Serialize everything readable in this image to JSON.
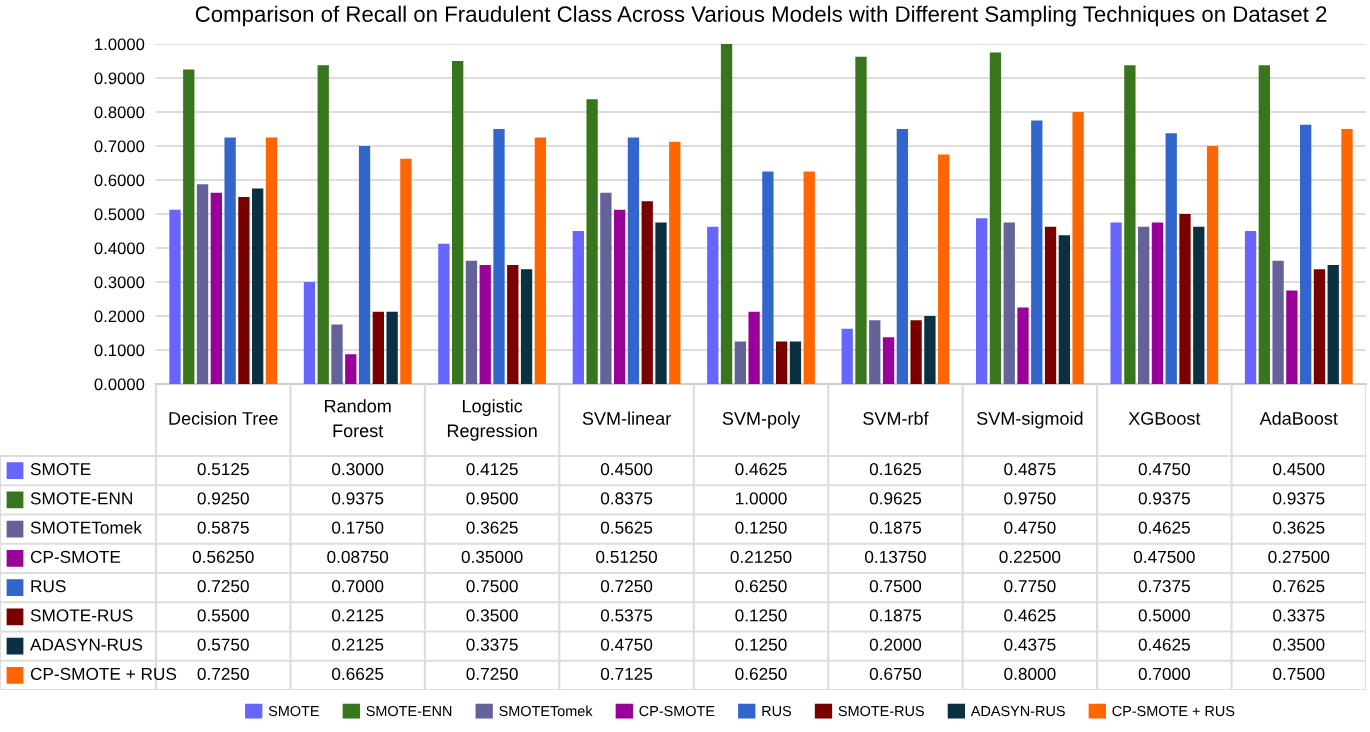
{
  "chart_data": {
    "type": "bar",
    "title": "Comparison of Recall on Fraudulent Class Across Various Models with Different Sampling Techniques on Dataset 2",
    "categories": [
      "Decision Tree",
      "Random Forest",
      "Logistic Regression",
      "SVM-linear",
      "SVM-poly",
      "SVM-rbf",
      "SVM-sigmoid",
      "XGBoost",
      "AdaBoost"
    ],
    "series": [
      {
        "name": "SMOTE",
        "color": "#6666ff",
        "values": [
          0.5125,
          0.3,
          0.4125,
          0.45,
          0.4625,
          0.1625,
          0.4875,
          0.475,
          0.45
        ],
        "value_labels": [
          "0.5125",
          "0.3000",
          "0.4125",
          "0.4500",
          "0.4625",
          "0.1625",
          "0.4875",
          "0.4750",
          "0.4500"
        ]
      },
      {
        "name": "SMOTE-ENN",
        "color": "#38761d",
        "values": [
          0.925,
          0.9375,
          0.95,
          0.8375,
          1.0,
          0.9625,
          0.975,
          0.9375,
          0.9375
        ],
        "value_labels": [
          "0.9250",
          "0.9375",
          "0.9500",
          "0.8375",
          "1.0000",
          "0.9625",
          "0.9750",
          "0.9375",
          "0.9375"
        ]
      },
      {
        "name": "SMOTETomek",
        "color": "#636399",
        "values": [
          0.5875,
          0.175,
          0.3625,
          0.5625,
          0.125,
          0.1875,
          0.475,
          0.4625,
          0.3625
        ],
        "value_labels": [
          "0.5875",
          "0.1750",
          "0.3625",
          "0.5625",
          "0.1250",
          "0.1875",
          "0.4750",
          "0.4625",
          "0.3625"
        ]
      },
      {
        "name": "CP-SMOTE",
        "color": "#990099",
        "values": [
          0.5625,
          0.0875,
          0.35,
          0.5125,
          0.2125,
          0.1375,
          0.225,
          0.475,
          0.275
        ],
        "value_labels": [
          "0.56250",
          "0.08750",
          "0.35000",
          "0.51250",
          "0.21250",
          "0.13750",
          "0.22500",
          "0.47500",
          "0.27500"
        ]
      },
      {
        "name": "RUS",
        "color": "#3366cc",
        "values": [
          0.725,
          0.7,
          0.75,
          0.725,
          0.625,
          0.75,
          0.775,
          0.7375,
          0.7625
        ],
        "value_labels": [
          "0.7250",
          "0.7000",
          "0.7500",
          "0.7250",
          "0.6250",
          "0.7500",
          "0.7750",
          "0.7375",
          "0.7625"
        ]
      },
      {
        "name": "SMOTE-RUS",
        "color": "#7a0000",
        "values": [
          0.55,
          0.2125,
          0.35,
          0.5375,
          0.125,
          0.1875,
          0.4625,
          0.5,
          0.3375
        ],
        "value_labels": [
          "0.5500",
          "0.2125",
          "0.3500",
          "0.5375",
          "0.1250",
          "0.1875",
          "0.4625",
          "0.5000",
          "0.3375"
        ]
      },
      {
        "name": "ADASYN-RUS",
        "color": "#0b3042",
        "values": [
          0.575,
          0.2125,
          0.3375,
          0.475,
          0.125,
          0.2,
          0.4375,
          0.4625,
          0.35
        ],
        "value_labels": [
          "0.5750",
          "0.2125",
          "0.3375",
          "0.4750",
          "0.1250",
          "0.2000",
          "0.4375",
          "0.4625",
          "0.3500"
        ]
      },
      {
        "name": "CP-SMOTE + RUS",
        "color": "#ff6600",
        "values": [
          0.725,
          0.6625,
          0.725,
          0.7125,
          0.625,
          0.675,
          0.8,
          0.7,
          0.75
        ],
        "value_labels": [
          "0.7250",
          "0.6625",
          "0.7250",
          "0.7125",
          "0.6250",
          "0.6750",
          "0.8000",
          "0.7000",
          "0.7500"
        ]
      }
    ],
    "ylim": [
      0,
      1
    ],
    "yticks": [
      {
        "value": 0,
        "label": "0.0000"
      },
      {
        "value": 0.1,
        "label": "0.1000"
      },
      {
        "value": 0.2,
        "label": "0.2000"
      },
      {
        "value": 0.3,
        "label": "0.3000"
      },
      {
        "value": 0.4,
        "label": "0.4000"
      },
      {
        "value": 0.5,
        "label": "0.5000"
      },
      {
        "value": 0.6,
        "label": "0.6000"
      },
      {
        "value": 0.7,
        "label": "0.7000"
      },
      {
        "value": 0.8,
        "label": "0.8000"
      },
      {
        "value": 0.9,
        "label": "0.9000"
      },
      {
        "value": 1.0,
        "label": "1.0000"
      }
    ],
    "grid": "y",
    "legend": "bottom"
  }
}
